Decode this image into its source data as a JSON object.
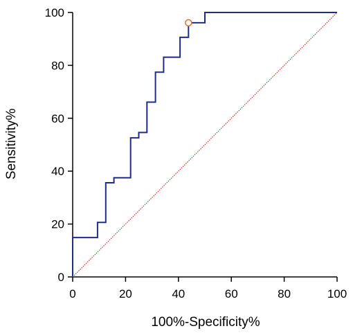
{
  "chart_data": {
    "type": "line",
    "title": "",
    "xlabel": "100%-Specificity%",
    "ylabel": "Sensitivity%",
    "xlim": [
      0,
      100
    ],
    "ylim": [
      0,
      100
    ],
    "xticks": [
      0,
      20,
      40,
      60,
      80,
      100
    ],
    "yticks": [
      0,
      20,
      40,
      60,
      80,
      100
    ],
    "grid": false,
    "series": [
      {
        "style": "step",
        "color": "#1f2a8a",
        "x": [
          0,
          0,
          9.4,
          9.4,
          12.5,
          12.5,
          15.6,
          15.6,
          21.9,
          21.9,
          25,
          25,
          28.1,
          28.1,
          31.3,
          31.3,
          34.4,
          34.4,
          40.6,
          40.6,
          43.8,
          43.8,
          50,
          50,
          100
        ],
        "y": [
          0,
          14.9,
          14.9,
          20.6,
          20.6,
          35.6,
          35.6,
          37.5,
          37.5,
          52.6,
          52.6,
          54.6,
          54.6,
          66.1,
          66.1,
          77.4,
          77.4,
          83.1,
          83.1,
          90.6,
          90.6,
          96.1,
          96.1,
          100,
          100
        ]
      },
      {
        "style": "diagonal",
        "color": "#b33a2e",
        "x": [
          0,
          100
        ],
        "y": [
          0,
          100
        ]
      }
    ],
    "marker": {
      "x": 43.8,
      "y": 96.1,
      "color": "#e07030"
    }
  }
}
